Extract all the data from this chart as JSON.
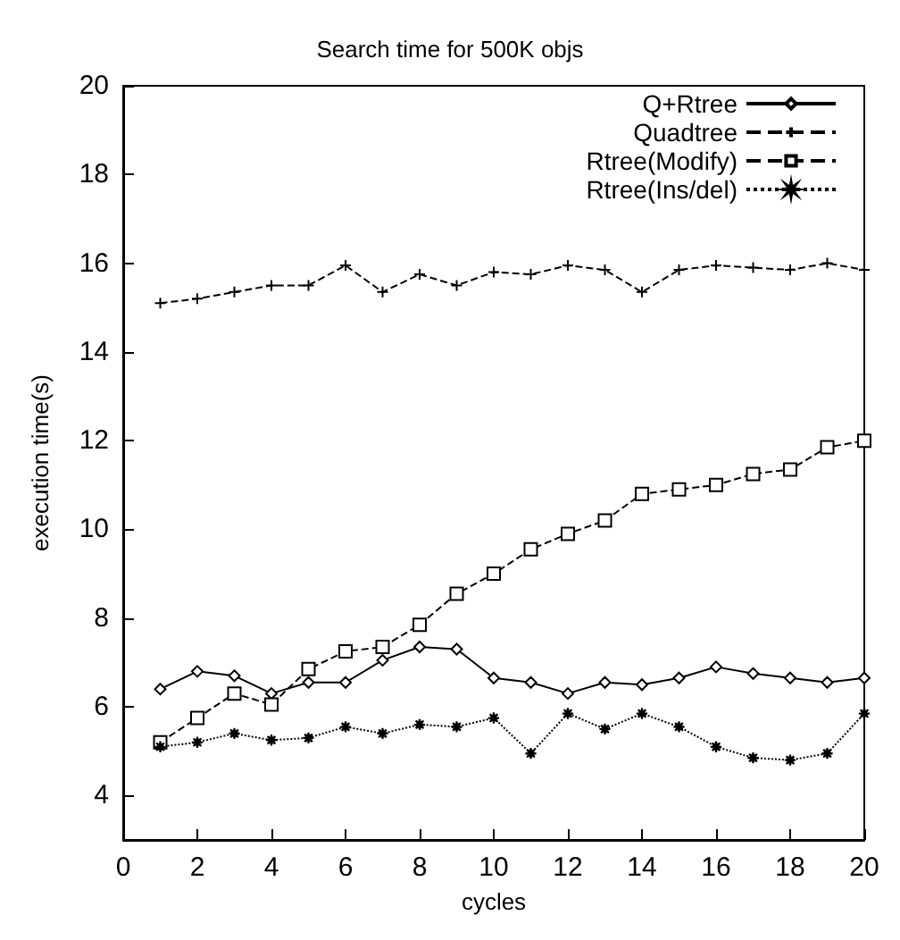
{
  "chart_data": {
    "type": "line",
    "title": "Search time for 500K objs",
    "xlabel": "cycles",
    "ylabel": "execution time(s)",
    "x": [
      1,
      2,
      3,
      4,
      5,
      6,
      7,
      8,
      9,
      10,
      11,
      12,
      13,
      14,
      15,
      16,
      17,
      18,
      19,
      20
    ],
    "series": [
      {
        "name": "Q+Rtree",
        "color": "#000000",
        "marker": "diamond",
        "line_style": "solid",
        "values": [
          6.4,
          6.8,
          6.7,
          6.3,
          6.55,
          6.55,
          7.05,
          7.35,
          7.3,
          6.65,
          6.55,
          6.3,
          6.55,
          6.5,
          6.65,
          6.9,
          6.75,
          6.65,
          6.55,
          6.65
        ]
      },
      {
        "name": "Quadtree",
        "color": "#000000",
        "marker": "cross",
        "line_style": "dashed",
        "values": [
          15.1,
          15.2,
          15.35,
          15.5,
          15.5,
          15.95,
          15.35,
          15.75,
          15.5,
          15.8,
          15.75,
          15.95,
          15.85,
          15.35,
          15.85,
          15.95,
          15.9,
          15.85,
          16.0,
          15.85
        ]
      },
      {
        "name": "Rtree(Modify)",
        "color": "#000000",
        "marker": "square",
        "line_style": "dashed",
        "values": [
          5.2,
          5.75,
          6.3,
          6.05,
          6.85,
          7.25,
          7.35,
          7.85,
          8.55,
          9.0,
          9.55,
          9.9,
          10.2,
          10.8,
          10.9,
          11.0,
          11.25,
          11.35,
          11.85,
          12.0
        ]
      },
      {
        "name": "Rtree(Ins/del)",
        "color": "#000000",
        "marker": "star",
        "line_style": "dotted",
        "values": [
          5.1,
          5.2,
          5.4,
          5.25,
          5.3,
          5.55,
          5.4,
          5.6,
          5.55,
          5.75,
          4.95,
          5.85,
          5.5,
          5.85,
          5.55,
          5.1,
          4.85,
          4.8,
          4.95,
          5.85
        ]
      }
    ],
    "xlim": [
      0,
      20
    ],
    "xticks": [
      0,
      2,
      4,
      6,
      8,
      10,
      12,
      14,
      16,
      18,
      20
    ],
    "ylim": [
      3,
      20
    ],
    "yticks": [
      4,
      6,
      8,
      10,
      12,
      14,
      16,
      18,
      20
    ],
    "grid": false,
    "legend": "top right"
  }
}
